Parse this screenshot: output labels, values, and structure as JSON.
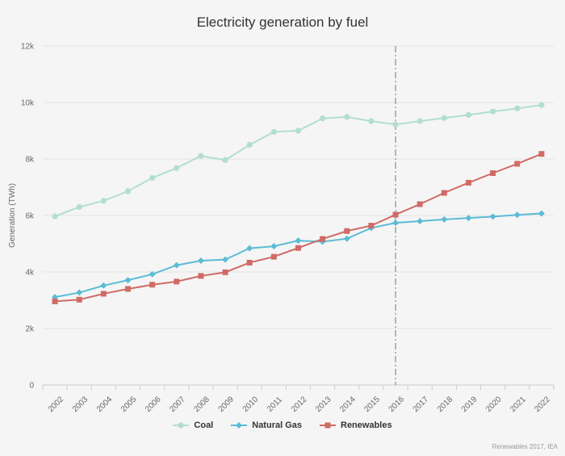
{
  "chart_data": {
    "type": "line",
    "title": "Electricity generation by fuel",
    "ylabel": "Generation (TWh)",
    "xlabel": "",
    "ylim": [
      0,
      12000
    ],
    "y_ticks": [
      0,
      2000,
      4000,
      6000,
      8000,
      10000,
      12000
    ],
    "y_tick_labels": [
      "0",
      "2k",
      "4k",
      "6k",
      "8k",
      "10k",
      "12k"
    ],
    "grid": "horizontal",
    "legend_position": "bottom",
    "annotation": {
      "type": "vertical-dashed-line",
      "x": "2016"
    },
    "categories": [
      "2002",
      "2003",
      "2004",
      "2005",
      "2006",
      "2007",
      "2008",
      "2009",
      "2010",
      "2011",
      "2012",
      "2013",
      "2014",
      "2015",
      "2016",
      "2017",
      "2018",
      "2019",
      "2020",
      "2021",
      "2022"
    ],
    "series": [
      {
        "name": "Coal",
        "color": "#b2dfcd",
        "marker": "circle",
        "values": [
          5970,
          6300,
          6520,
          6860,
          7330,
          7680,
          8110,
          7960,
          8500,
          8960,
          9000,
          9440,
          9490,
          9340,
          9220,
          9340,
          9450,
          9560,
          9680,
          9790,
          9910
        ]
      },
      {
        "name": "Natural Gas",
        "color": "#5bbcd6",
        "marker": "diamond",
        "values": [
          3110,
          3270,
          3520,
          3710,
          3920,
          4240,
          4400,
          4440,
          4840,
          4910,
          5110,
          5070,
          5180,
          5560,
          5740,
          5800,
          5860,
          5910,
          5960,
          6020,
          6070
        ]
      },
      {
        "name": "Renewables",
        "color": "#d06b66",
        "marker": "square",
        "values": [
          2960,
          3020,
          3230,
          3400,
          3550,
          3660,
          3860,
          3990,
          4330,
          4540,
          4850,
          5170,
          5450,
          5640,
          6030,
          6400,
          6800,
          7160,
          7500,
          7830,
          8180
        ]
      }
    ]
  },
  "credits": "Renewables 2017, IEA"
}
